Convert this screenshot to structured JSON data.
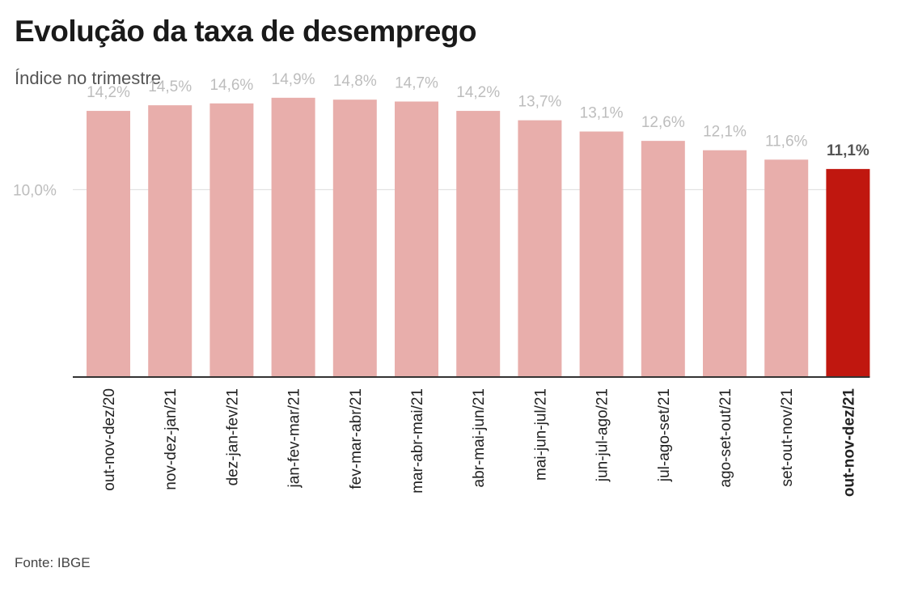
{
  "title": "Evolução da taxa de desemprego",
  "subtitle": "Índice no trimestre",
  "source": "Fonte: IBGE",
  "colors": {
    "bar": "#e8aeab",
    "highlight": "#c0170f",
    "axis": "#333333",
    "grid": "#dddddd"
  },
  "chart_data": {
    "type": "bar",
    "title": "Evolução da taxa de desemprego",
    "subtitle": "Índice no trimestre",
    "xlabel": "",
    "ylabel": "",
    "ylim": [
      0,
      15.8
    ],
    "yticks": [
      10
    ],
    "ytick_labels": [
      "10,0%"
    ],
    "grid": true,
    "highlight_index": 12,
    "categories": [
      "out-nov-dez/20",
      "nov-dez-jan/21",
      "dez-jan-fev/21",
      "jan-fev-mar/21",
      "fev-mar-abr/21",
      "mar-abr-mai/21",
      "abr-mai-jun/21",
      "mai-jun-jul/21",
      "jun-jul-ago/21",
      "jul-ago-set/21",
      "ago-set-out/21",
      "set-out-nov/21",
      "out-nov-dez/21"
    ],
    "values": [
      14.2,
      14.5,
      14.6,
      14.9,
      14.8,
      14.7,
      14.2,
      13.7,
      13.1,
      12.6,
      12.1,
      11.6,
      11.1
    ],
    "value_labels": [
      "14,2%",
      "14,5%",
      "14,6%",
      "14,9%",
      "14,8%",
      "14,7%",
      "14,2%",
      "13,7%",
      "13,1%",
      "12,6%",
      "12,1%",
      "11,6%",
      "11,1%"
    ]
  }
}
